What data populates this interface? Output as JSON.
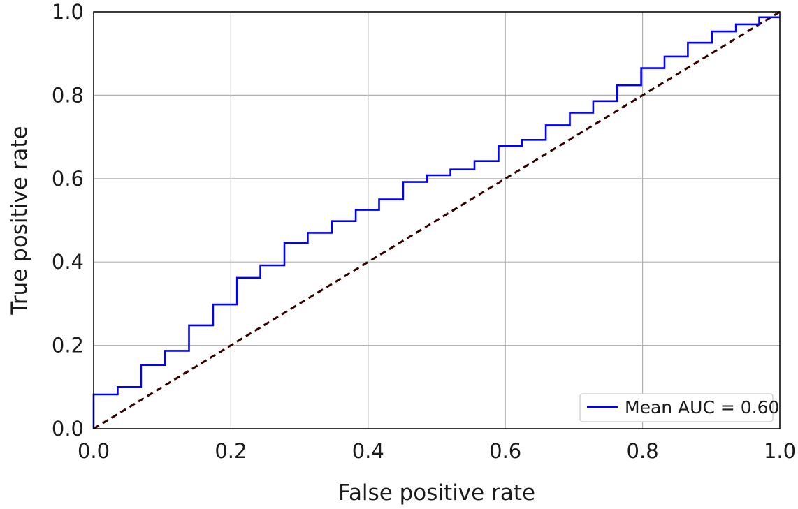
{
  "chart_data": {
    "type": "line",
    "title": "",
    "xlabel": "False positive rate",
    "ylabel": "True positive rate",
    "xlim": [
      0.0,
      1.0
    ],
    "ylim": [
      0.0,
      1.0
    ],
    "xticks": [
      "0.0",
      "0.2",
      "0.4",
      "0.6",
      "0.8",
      "1.0"
    ],
    "yticks": [
      "0.0",
      "0.2",
      "0.4",
      "0.6",
      "0.8",
      "1.0"
    ],
    "grid": true,
    "legend": {
      "placement": "bottom-right",
      "entries": [
        "Mean AUC = 0.60"
      ]
    },
    "series": [
      {
        "name": "Mean AUC = 0.60",
        "style": "step",
        "color": "#0000ff",
        "x": [
          0.0,
          0.0,
          0.035,
          0.035,
          0.069,
          0.069,
          0.104,
          0.104,
          0.139,
          0.139,
          0.174,
          0.174,
          0.209,
          0.209,
          0.243,
          0.243,
          0.278,
          0.278,
          0.312,
          0.312,
          0.347,
          0.347,
          0.382,
          0.382,
          0.416,
          0.416,
          0.451,
          0.451,
          0.486,
          0.486,
          0.52,
          0.52,
          0.555,
          0.555,
          0.59,
          0.59,
          0.624,
          0.624,
          0.659,
          0.659,
          0.694,
          0.694,
          0.728,
          0.728,
          0.763,
          0.763,
          0.798,
          0.798,
          0.832,
          0.832,
          0.866,
          0.866,
          0.901,
          0.901,
          0.936,
          0.936,
          0.97,
          0.97,
          1.0
        ],
        "y": [
          0.0,
          0.082,
          0.082,
          0.1,
          0.1,
          0.153,
          0.153,
          0.187,
          0.187,
          0.248,
          0.248,
          0.298,
          0.298,
          0.362,
          0.362,
          0.392,
          0.392,
          0.446,
          0.446,
          0.47,
          0.47,
          0.498,
          0.498,
          0.525,
          0.525,
          0.55,
          0.55,
          0.592,
          0.592,
          0.608,
          0.608,
          0.622,
          0.622,
          0.642,
          0.642,
          0.678,
          0.678,
          0.693,
          0.693,
          0.728,
          0.728,
          0.758,
          0.758,
          0.786,
          0.786,
          0.824,
          0.824,
          0.865,
          0.865,
          0.893,
          0.893,
          0.926,
          0.926,
          0.953,
          0.953,
          0.97,
          0.97,
          0.987,
          0.987
        ]
      },
      {
        "name": "",
        "style": "dashed",
        "color": "#330000",
        "x": [
          0.0,
          1.0
        ],
        "y": [
          0.0,
          1.0
        ]
      }
    ]
  }
}
